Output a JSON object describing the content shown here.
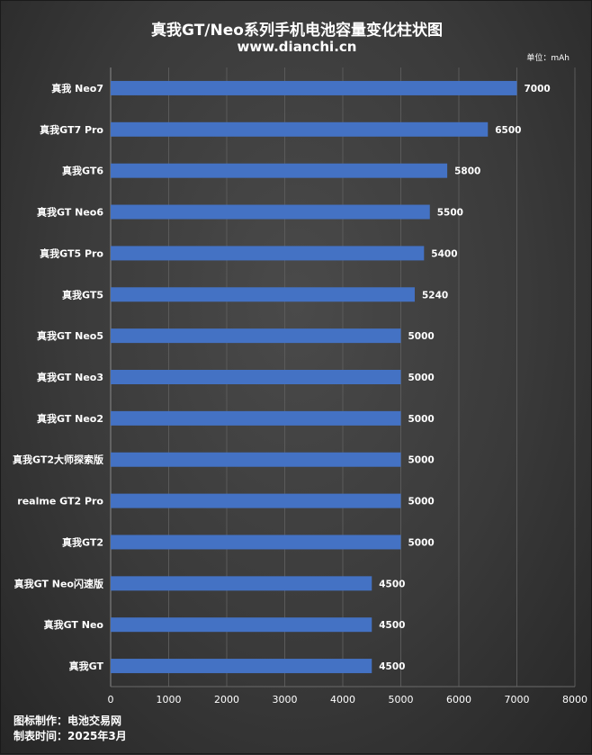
{
  "header": {
    "title": "真我GT/Neo系列手机电池容量变化柱状图",
    "subtitle": "www.dianchi.cn",
    "unit": "单位：mAh"
  },
  "footer": {
    "credit": "图标制作：电池交易网",
    "date": "制表时间：2025年3月"
  },
  "colors": {
    "bar": "#4472c4",
    "background": "#3a3a3a",
    "text": "#ffffff",
    "grid": "#5a5a5a"
  },
  "chart_data": {
    "type": "bar",
    "orientation": "horizontal",
    "title": "真我GT/Neo系列手机电池容量变化柱状图",
    "subtitle": "www.dianchi.cn",
    "unit": "单位：mAh",
    "categories": [
      "真我 Neo7",
      "真我GT7 Pro",
      "真我GT6",
      "真我GT Neo6",
      "真我GT5 Pro",
      "真我GT5",
      "真我GT Neo5",
      "真我GT Neo3",
      "真我GT Neo2",
      "真我GT2大师探索版",
      "realme GT2 Pro",
      "真我GT2",
      "真我GT Neo闪速版",
      "真我GT Neo",
      "真我GT"
    ],
    "values": [
      7000,
      6500,
      5800,
      5500,
      5400,
      5240,
      5000,
      5000,
      5000,
      5000,
      5000,
      5000,
      4500,
      4500,
      4500
    ],
    "xlim": [
      0,
      8000
    ],
    "xticks": [
      0,
      1000,
      2000,
      3000,
      4000,
      5000,
      6000,
      7000,
      8000
    ],
    "grid": true,
    "legend": "none"
  }
}
